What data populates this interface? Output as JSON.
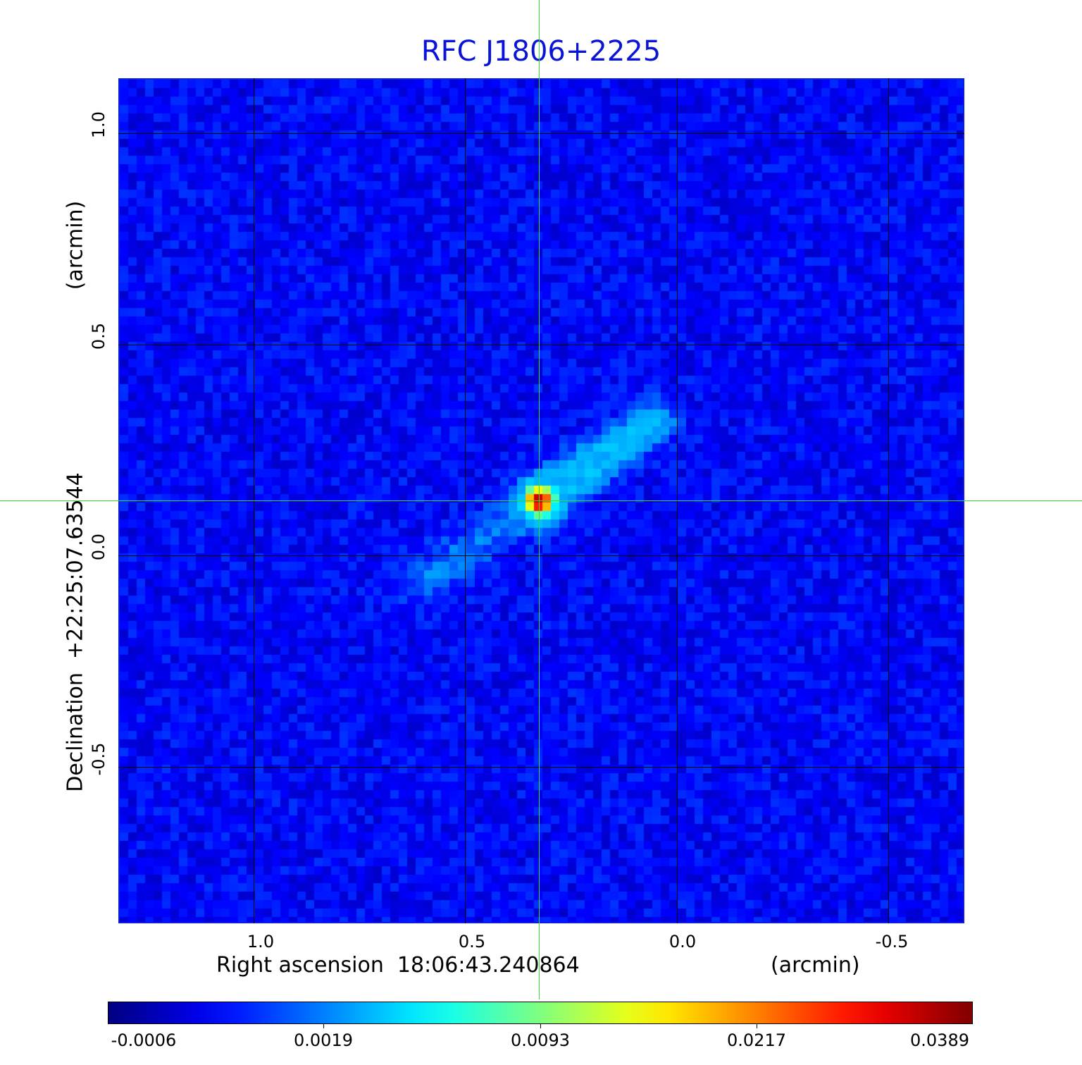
{
  "chart_data": {
    "type": "heatmap",
    "title": "RFC J1806+2225",
    "xlabel": "Right ascension  18:06:43.240864",
    "xunit": "(arcmin)",
    "ylabel": "Declination  +22:25:07.63544",
    "yunit": "(arcmin)",
    "x_ticks": [
      "1.0",
      "0.5",
      "0.0",
      "-0.5"
    ],
    "x_tick_values": [
      1.0,
      0.5,
      0.0,
      -0.5
    ],
    "y_ticks": [
      "1.0",
      "0.5",
      "0.0",
      "-0.5"
    ],
    "y_tick_values": [
      1.0,
      0.5,
      0.0,
      -0.5
    ],
    "xlim": [
      1.32,
      -0.68
    ],
    "ylim": [
      -0.87,
      1.13
    ],
    "grid": true,
    "crosshair": {
      "x": 0.325,
      "y": 0.13
    },
    "peak": {
      "x": 0.325,
      "y": 0.13,
      "value": 0.0389
    },
    "jet": {
      "from": [
        0.325,
        0.13
      ],
      "to": [
        0.05,
        0.32
      ],
      "value": 0.004
    },
    "colormap": "jet",
    "colorbar_ticks": [
      "-0.0006",
      "0.0019",
      "0.0093",
      "0.0217",
      "0.0389"
    ],
    "colorbar_range": [
      -0.0006,
      0.0389
    ],
    "colors": {
      "title": "#0a14d6",
      "grid": "#000000",
      "crosshair": "#33dd33",
      "frame": "#0a1ee0"
    }
  }
}
